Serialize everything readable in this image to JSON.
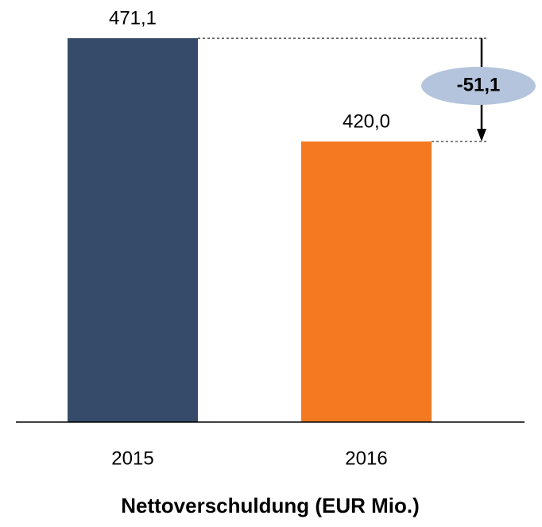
{
  "chart_data": {
    "type": "bar",
    "title": "Nettoverschuldung (EUR Mio.)",
    "categories": [
      "2015",
      "2016"
    ],
    "values": [
      471.1,
      420.0
    ],
    "value_labels": [
      "471,1",
      "420,0"
    ],
    "colors": [
      "#364b6a",
      "#f47920"
    ],
    "ylim": [
      281.2,
      490
    ],
    "annotation": "-51,1"
  }
}
